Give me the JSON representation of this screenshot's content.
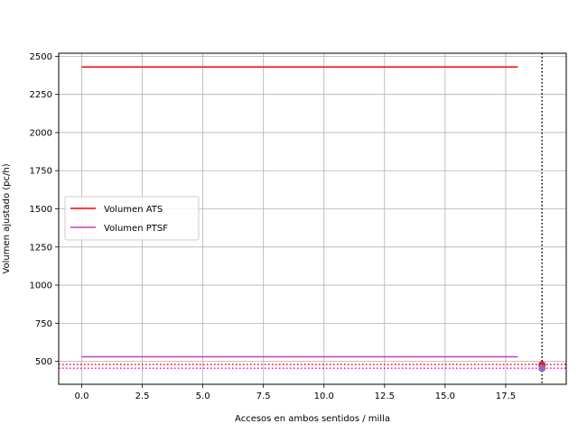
{
  "chart_data": {
    "type": "line",
    "title": "",
    "xlabel": "Accesos en ambos sentidos / milla",
    "ylabel": "Volumen ajustado (pc/h)",
    "xlim": [
      -0.95,
      20.0
    ],
    "ylim": [
      350,
      2520
    ],
    "xticks": [
      0.0,
      2.5,
      5.0,
      7.5,
      10.0,
      12.5,
      15.0,
      17.5
    ],
    "xtick_labels": [
      "0.0",
      "2.5",
      "5.0",
      "7.5",
      "10.0",
      "12.5",
      "15.0",
      "17.5"
    ],
    "yticks": [
      500,
      750,
      1000,
      1250,
      1500,
      1750,
      2000,
      2250,
      2500
    ],
    "ytick_labels": [
      "500",
      "750",
      "1000",
      "1250",
      "1500",
      "1750",
      "2000",
      "2250",
      "2500"
    ],
    "grid": true,
    "legend_position": "center-left",
    "series": [
      {
        "name": "Volumen ATS",
        "color": "#ff0000",
        "x": [
          0,
          18
        ],
        "y": [
          2430,
          2430
        ]
      },
      {
        "name": "Volumen PTSF",
        "color": "#bf40bf",
        "x": [
          0,
          18
        ],
        "y": [
          530,
          530
        ]
      }
    ],
    "reference_lines": [
      {
        "orientation": "horizontal",
        "value": 480,
        "color": "#ff0000",
        "style": "dotted"
      },
      {
        "orientation": "horizontal",
        "value": 455,
        "color": "#ff00ff",
        "style": "dotted"
      },
      {
        "orientation": "vertical",
        "value": 19,
        "color": "#000000",
        "style": "dotted"
      }
    ],
    "points": [
      {
        "x": 19,
        "y": 478,
        "color": "#d62728"
      },
      {
        "x": 19,
        "y": 455,
        "color": "#9467bd"
      }
    ]
  }
}
